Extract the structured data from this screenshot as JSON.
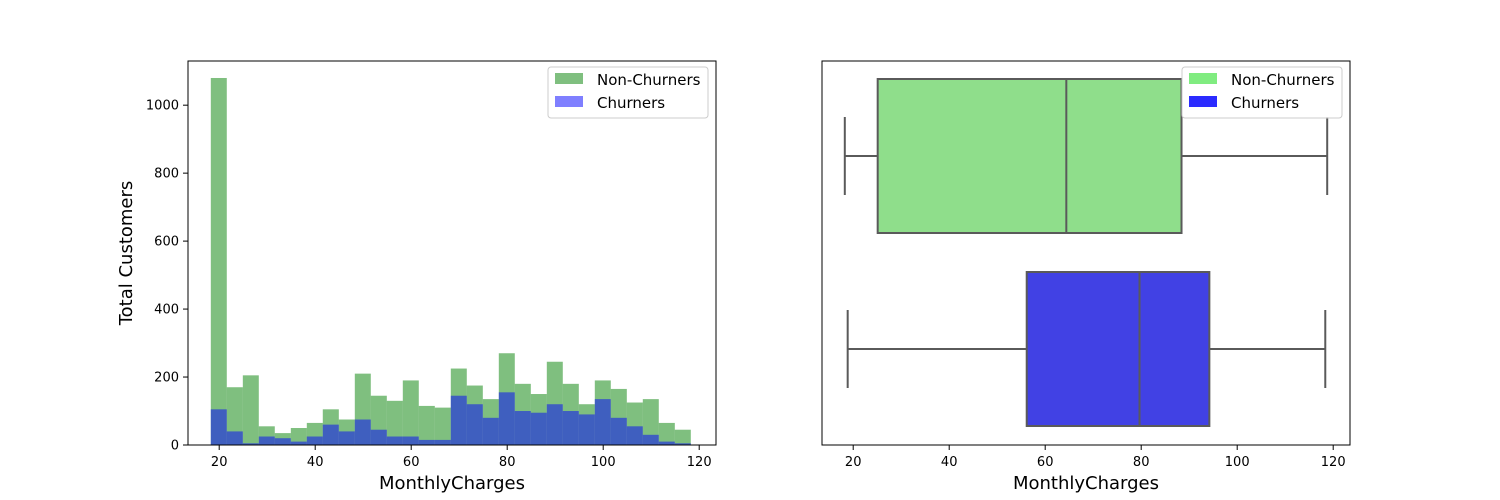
{
  "chart_data": [
    {
      "type": "histogram",
      "xlabel": "MonthlyCharges",
      "ylabel": "Total Customers",
      "xlim": [
        13.5,
        123.5
      ],
      "ylim": [
        0,
        1130
      ],
      "xticks": [
        20,
        40,
        60,
        80,
        100,
        120
      ],
      "yticks": [
        0,
        200,
        400,
        600,
        800,
        1000
      ],
      "bin_edges": [
        18.25,
        21.58,
        24.92,
        28.25,
        31.58,
        34.92,
        38.25,
        41.58,
        44.92,
        48.25,
        51.58,
        54.92,
        58.25,
        61.58,
        64.92,
        68.25,
        71.58,
        74.92,
        78.25,
        81.58,
        84.92,
        88.25,
        91.58,
        94.92,
        98.25,
        101.58,
        104.92,
        108.25,
        111.58,
        114.92,
        118.25
      ],
      "legend": {
        "position": "upper right",
        "entries": [
          "Non-Churners",
          "Churners"
        ]
      },
      "series": [
        {
          "name": "Non-Churners",
          "color": "#008000",
          "alpha": 0.5,
          "values": [
            1080,
            170,
            205,
            55,
            35,
            50,
            65,
            105,
            75,
            210,
            145,
            130,
            190,
            115,
            110,
            225,
            175,
            135,
            270,
            180,
            150,
            245,
            180,
            120,
            190,
            165,
            125,
            135,
            65,
            45
          ]
        },
        {
          "name": "Churners",
          "color": "#0000ff",
          "alpha": 0.5,
          "values": [
            105,
            40,
            5,
            25,
            20,
            10,
            25,
            60,
            40,
            75,
            45,
            25,
            25,
            15,
            15,
            145,
            120,
            80,
            155,
            100,
            95,
            120,
            100,
            90,
            135,
            80,
            55,
            30,
            10,
            5
          ]
        }
      ]
    },
    {
      "type": "boxplot",
      "orientation": "horizontal",
      "xlabel": "MonthlyCharges",
      "xlim": [
        13.5,
        123.5
      ],
      "xticks": [
        20,
        40,
        60,
        80,
        100,
        120
      ],
      "legend": {
        "position": "upper right",
        "entries": [
          "Non-Churners",
          "Churners"
        ]
      },
      "series": [
        {
          "name": "Non-Churners",
          "color": "#8fde8b",
          "legend_color": "#80ec80",
          "min": 18.25,
          "q1": 25.1,
          "median": 64.4,
          "q3": 88.4,
          "max": 118.75
        },
        {
          "name": "Churners",
          "color": "#4141e4",
          "legend_color": "#2b2bff",
          "min": 18.85,
          "q1": 56.15,
          "median": 79.65,
          "q3": 94.2,
          "max": 118.35
        }
      ]
    }
  ]
}
